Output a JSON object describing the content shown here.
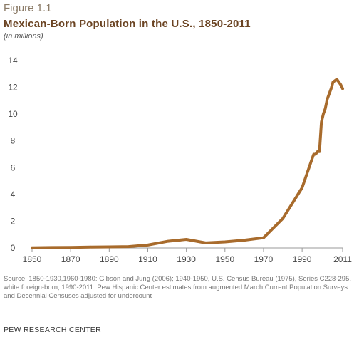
{
  "header": {
    "figure_label": "Figure 1.1",
    "title": "Mexican-Born Population in the U.S., 1850-2011",
    "subtitle": "(in millions)"
  },
  "footer": {
    "source": "Source: 1850-1930,1960-1980: Gibson and Jung (2006); 1940-1950, U.S. Census Bureau (1975), Series C228-295, white foreign-born; 1990-2011: Pew Hispanic Center estimates from augmented March Current Population Surveys and Decennial Censuses adjusted for undercount",
    "brand": "PEW RESEARCH CENTER"
  },
  "colors": {
    "line": "#a86b2c",
    "axis": "#999999"
  },
  "chart_data": {
    "type": "line",
    "title": "Mexican-Born Population in the U.S., 1850-2011",
    "subtitle": "(in millions)",
    "xlim": [
      1850,
      2011
    ],
    "ylim": [
      0,
      14
    ],
    "x_ticks": [
      "1850",
      "1870",
      "1890",
      "1910",
      "1930",
      "1950",
      "1970",
      "1990",
      "2011"
    ],
    "y_ticks": [
      "0",
      "2",
      "4",
      "6",
      "8",
      "10",
      "12",
      "14"
    ],
    "grid": false,
    "series": [
      {
        "x": [
          1850,
          1860,
          1870,
          1880,
          1890,
          1900,
          1910,
          1920,
          1930,
          1940,
          1950,
          1960,
          1970,
          1980,
          1990,
          1995,
          1996,
          1997,
          1998,
          1999,
          2000,
          2001,
          2002,
          2003,
          2004,
          2005,
          2006,
          2007,
          2008,
          2009,
          2010,
          2011
        ],
        "y": [
          0.01,
          0.03,
          0.04,
          0.07,
          0.08,
          0.1,
          0.22,
          0.49,
          0.64,
          0.38,
          0.45,
          0.58,
          0.76,
          2.2,
          4.5,
          6.6,
          7.0,
          7.0,
          7.2,
          7.2,
          9.4,
          10.0,
          10.4,
          11.1,
          11.5,
          11.9,
          12.4,
          12.5,
          12.6,
          12.4,
          12.2,
          11.9
        ]
      }
    ]
  }
}
